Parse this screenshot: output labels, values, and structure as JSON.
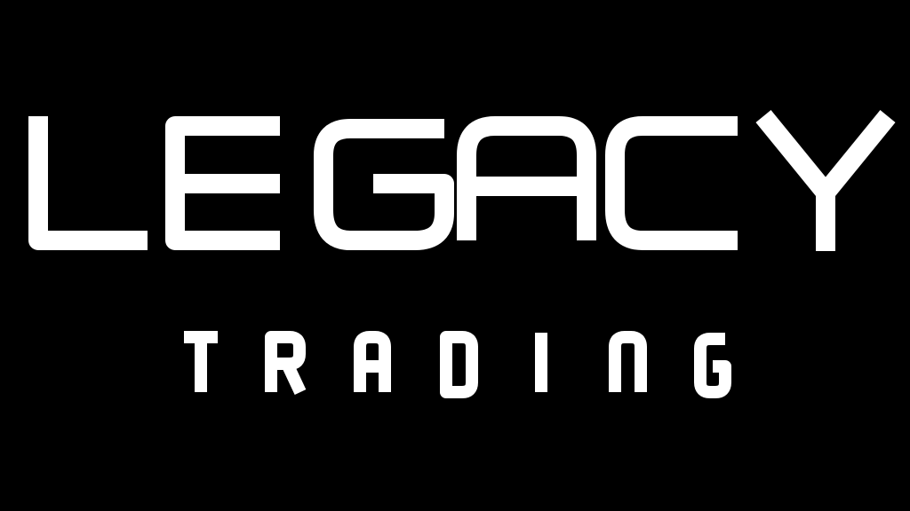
{
  "logo": {
    "primary_word": "LEGACY",
    "secondary_word": "TRADING"
  },
  "colors": {
    "background": "#000000",
    "foreground": "#ffffff"
  }
}
